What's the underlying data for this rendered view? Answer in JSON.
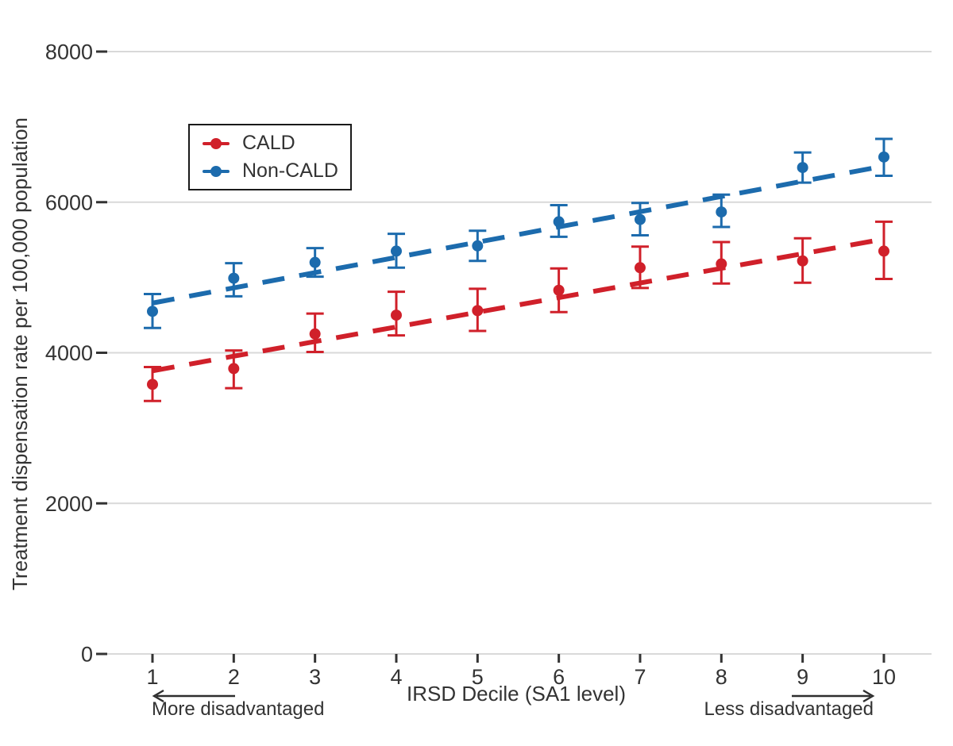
{
  "chart_data": {
    "type": "scatter",
    "title": "",
    "xlabel": "IRSD Decile (SA1 level)",
    "ylabel": "Treatment dispensation rate per 100,000 population",
    "x": [
      1,
      2,
      3,
      4,
      5,
      6,
      7,
      8,
      9,
      10
    ],
    "x_tick_labels": [
      "1",
      "2",
      "3",
      "4",
      "5",
      "6",
      "7",
      "8",
      "9",
      "10"
    ],
    "y_ticks": [
      0,
      2000,
      4000,
      6000,
      8000
    ],
    "y_tick_labels": [
      "0",
      "2000",
      "4000",
      "6000",
      "8000"
    ],
    "ylim": [
      0,
      8000
    ],
    "grid": "horizontal",
    "legend_position": "top-left-inside",
    "series": [
      {
        "name": "CALD",
        "color": "#d0202a",
        "marker": "point-with-error-bar",
        "values": [
          3580,
          3790,
          4250,
          4500,
          4560,
          4830,
          5130,
          5180,
          5220,
          5350
        ],
        "ci_low": [
          3360,
          3530,
          4010,
          4230,
          4290,
          4540,
          4860,
          4920,
          4930,
          4980
        ],
        "ci_high": [
          3810,
          4030,
          4520,
          4810,
          4850,
          5120,
          5410,
          5470,
          5520,
          5740
        ],
        "trendline": {
          "style": "dashed",
          "x_start": 1,
          "y_start": 3760,
          "x_end": 10,
          "y_end": 5510
        }
      },
      {
        "name": "Non-CALD",
        "color": "#1c6bad",
        "marker": "point-with-error-bar",
        "values": [
          4550,
          4990,
          5200,
          5350,
          5420,
          5740,
          5770,
          5870,
          6460,
          6600
        ],
        "ci_low": [
          4330,
          4750,
          5010,
          5130,
          5220,
          5540,
          5560,
          5670,
          6260,
          6350
        ],
        "ci_high": [
          4780,
          5190,
          5390,
          5580,
          5620,
          5960,
          5990,
          6100,
          6660,
          6840
        ],
        "trendline": {
          "style": "dashed",
          "x_start": 1,
          "y_start": 4660,
          "x_end": 10,
          "y_end": 6480
        }
      }
    ],
    "annotations": {
      "left": {
        "text": "More disadvantaged",
        "arrow": "left"
      },
      "right": {
        "text": "Less disadvantaged",
        "arrow": "right"
      }
    }
  }
}
